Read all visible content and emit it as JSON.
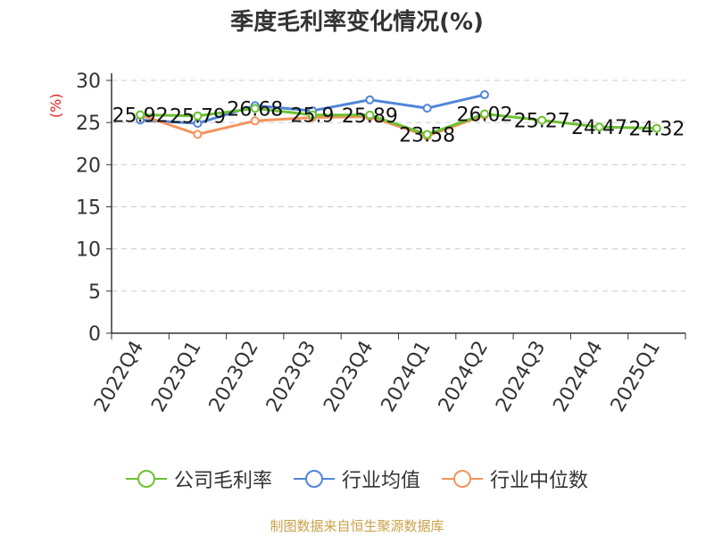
{
  "title": "季度毛利率变化情况(%)",
  "source_note": "制图数据来自恒生聚源数据库",
  "chart_data": {
    "type": "line",
    "title": "季度毛利率变化情况(%)",
    "ylabel": "(%)",
    "ylabel_color": "#e02020",
    "ylim": [
      0,
      30
    ],
    "yticks": [
      0,
      5,
      10,
      15,
      20,
      25,
      30
    ],
    "grid": true,
    "legend_position": "bottom",
    "categories": [
      "2022Q4",
      "2023Q1",
      "2023Q2",
      "2023Q3",
      "2023Q4",
      "2024Q1",
      "2024Q2",
      "2024Q3",
      "2024Q4",
      "2025Q1"
    ],
    "series": [
      {
        "name": "公司毛利率",
        "color": "#6cc230",
        "values": [
          25.92,
          25.79,
          26.68,
          25.9,
          25.89,
          23.58,
          26.02,
          25.27,
          24.47,
          24.32
        ],
        "labels": [
          "25.92",
          "25.79",
          "26.68",
          "25.9",
          "25.89",
          "23.58",
          "26.02",
          "25.27",
          "24.47",
          "24.32"
        ]
      },
      {
        "name": "行业均值",
        "color": "#4f86d8",
        "values": [
          25.3,
          24.9,
          27.0,
          26.4,
          27.7,
          26.7,
          28.3,
          null,
          null,
          null
        ]
      },
      {
        "name": "行业中位数",
        "color": "#f4935c",
        "values": [
          25.9,
          23.6,
          25.2,
          25.6,
          25.7,
          23.4,
          25.9,
          null,
          null,
          null
        ]
      }
    ]
  }
}
